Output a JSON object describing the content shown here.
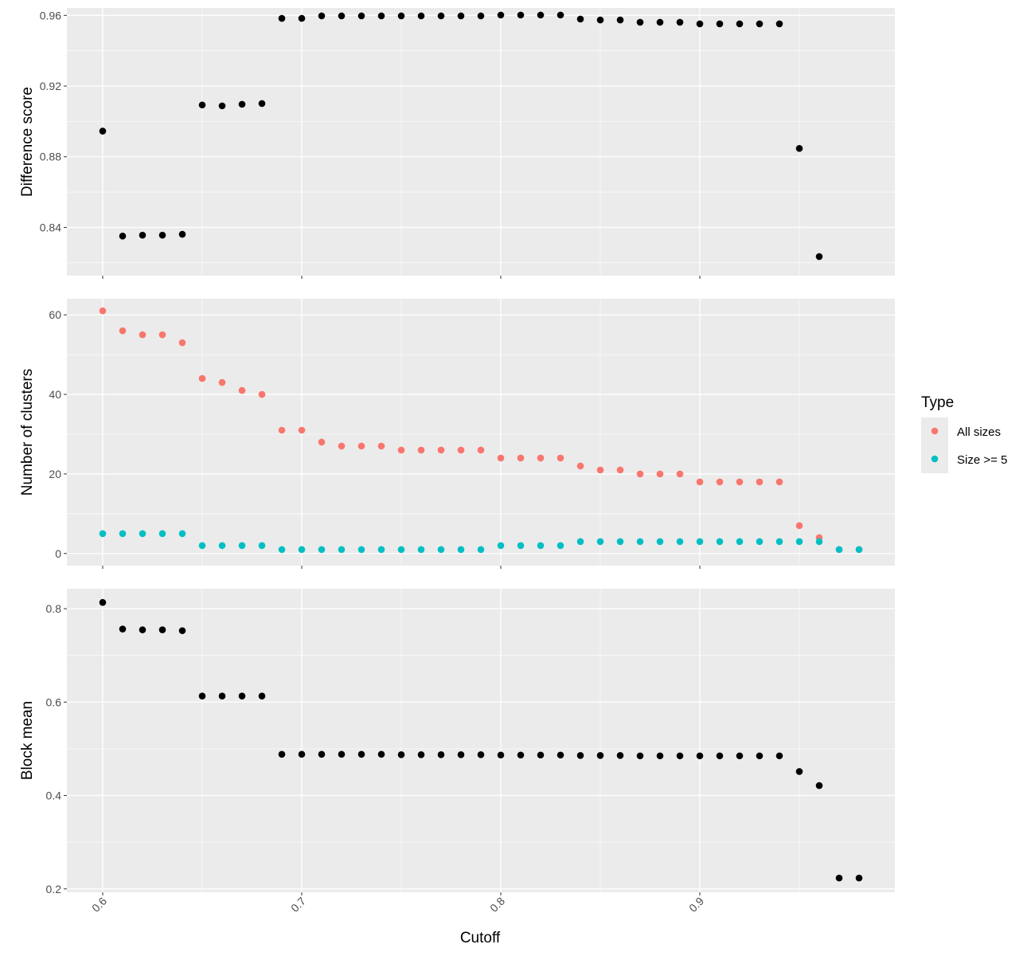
{
  "chart_data": {
    "type": "scatter",
    "xlabel": "Cutoff",
    "x_ticks": [
      "0.6",
      "0.7",
      "0.8",
      "0.9"
    ],
    "x_tick_values": [
      0.6,
      0.7,
      0.8,
      0.9
    ],
    "xlim": [
      0.582,
      0.998
    ],
    "grid": true,
    "legend": {
      "title": "Type",
      "placement": "right",
      "entries": [
        {
          "label": "All sizes",
          "color": "#F8766D"
        },
        {
          "label": "Size >= 5",
          "color": "#00BFC4"
        }
      ]
    },
    "panels": [
      {
        "ylabel": "Difference score",
        "ylim": [
          0.8127,
          0.9642
        ],
        "y_ticks": [
          "0.84",
          "0.88",
          "0.92",
          "0.96"
        ],
        "y_tick_values": [
          0.84,
          0.88,
          0.92,
          0.96
        ],
        "series": [
          {
            "color": "#000000",
            "points": [
              [
                0.6,
                0.8945
              ],
              [
                0.61,
                0.8351
              ],
              [
                0.62,
                0.8356
              ],
              [
                0.63,
                0.8356
              ],
              [
                0.64,
                0.8361
              ],
              [
                0.65,
                0.9093
              ],
              [
                0.66,
                0.9088
              ],
              [
                0.67,
                0.9097
              ],
              [
                0.68,
                0.9101
              ],
              [
                0.69,
                0.9583
              ],
              [
                0.7,
                0.9583
              ],
              [
                0.71,
                0.9597
              ],
              [
                0.72,
                0.9597
              ],
              [
                0.73,
                0.9597
              ],
              [
                0.74,
                0.9597
              ],
              [
                0.75,
                0.9597
              ],
              [
                0.76,
                0.9597
              ],
              [
                0.77,
                0.9597
              ],
              [
                0.78,
                0.9597
              ],
              [
                0.79,
                0.9597
              ],
              [
                0.8,
                0.9602
              ],
              [
                0.81,
                0.9602
              ],
              [
                0.82,
                0.9602
              ],
              [
                0.83,
                0.9602
              ],
              [
                0.84,
                0.9579
              ],
              [
                0.85,
                0.9574
              ],
              [
                0.86,
                0.9574
              ],
              [
                0.87,
                0.9561
              ],
              [
                0.88,
                0.9561
              ],
              [
                0.89,
                0.9561
              ],
              [
                0.9,
                0.9552
              ],
              [
                0.91,
                0.9552
              ],
              [
                0.92,
                0.9552
              ],
              [
                0.93,
                0.9552
              ],
              [
                0.94,
                0.9552
              ],
              [
                0.95,
                0.8847
              ],
              [
                0.96,
                0.8235
              ]
            ]
          }
        ]
      },
      {
        "ylabel": "Number of clusters",
        "ylim": [
          -3.05,
          64.05
        ],
        "y_ticks": [
          "0",
          "20",
          "40",
          "60"
        ],
        "y_tick_values": [
          0,
          20,
          40,
          60
        ],
        "series": [
          {
            "name": "All sizes",
            "color": "#F8766D",
            "points": [
              [
                0.6,
                61
              ],
              [
                0.61,
                56
              ],
              [
                0.62,
                55
              ],
              [
                0.63,
                55
              ],
              [
                0.64,
                53
              ],
              [
                0.65,
                44
              ],
              [
                0.66,
                43
              ],
              [
                0.67,
                41
              ],
              [
                0.68,
                40
              ],
              [
                0.69,
                31
              ],
              [
                0.7,
                31
              ],
              [
                0.71,
                28
              ],
              [
                0.72,
                27
              ],
              [
                0.73,
                27
              ],
              [
                0.74,
                27
              ],
              [
                0.75,
                26
              ],
              [
                0.76,
                26
              ],
              [
                0.77,
                26
              ],
              [
                0.78,
                26
              ],
              [
                0.79,
                26
              ],
              [
                0.8,
                24
              ],
              [
                0.81,
                24
              ],
              [
                0.82,
                24
              ],
              [
                0.83,
                24
              ],
              [
                0.84,
                22
              ],
              [
                0.85,
                21
              ],
              [
                0.86,
                21
              ],
              [
                0.87,
                20
              ],
              [
                0.88,
                20
              ],
              [
                0.89,
                20
              ],
              [
                0.9,
                18
              ],
              [
                0.91,
                18
              ],
              [
                0.92,
                18
              ],
              [
                0.93,
                18
              ],
              [
                0.94,
                18
              ],
              [
                0.95,
                7
              ],
              [
                0.96,
                4
              ],
              [
                0.97,
                1
              ],
              [
                0.98,
                1
              ]
            ]
          },
          {
            "name": "Size >= 5",
            "color": "#00BFC4",
            "points": [
              [
                0.6,
                5
              ],
              [
                0.61,
                5
              ],
              [
                0.62,
                5
              ],
              [
                0.63,
                5
              ],
              [
                0.64,
                5
              ],
              [
                0.65,
                2
              ],
              [
                0.66,
                2
              ],
              [
                0.67,
                2
              ],
              [
                0.68,
                2
              ],
              [
                0.69,
                1
              ],
              [
                0.7,
                1
              ],
              [
                0.71,
                1
              ],
              [
                0.72,
                1
              ],
              [
                0.73,
                1
              ],
              [
                0.74,
                1
              ],
              [
                0.75,
                1
              ],
              [
                0.76,
                1
              ],
              [
                0.77,
                1
              ],
              [
                0.78,
                1
              ],
              [
                0.79,
                1
              ],
              [
                0.8,
                2
              ],
              [
                0.81,
                2
              ],
              [
                0.82,
                2
              ],
              [
                0.83,
                2
              ],
              [
                0.84,
                3
              ],
              [
                0.85,
                3
              ],
              [
                0.86,
                3
              ],
              [
                0.87,
                3
              ],
              [
                0.88,
                3
              ],
              [
                0.89,
                3
              ],
              [
                0.9,
                3
              ],
              [
                0.91,
                3
              ],
              [
                0.92,
                3
              ],
              [
                0.93,
                3
              ],
              [
                0.94,
                3
              ],
              [
                0.95,
                3
              ],
              [
                0.96,
                3
              ],
              [
                0.97,
                1
              ],
              [
                0.98,
                1
              ]
            ]
          }
        ]
      },
      {
        "ylabel": "Block mean",
        "ylim": [
          0.1928,
          0.8427
        ],
        "y_ticks": [
          "0.2",
          "0.4",
          "0.6",
          "0.8"
        ],
        "y_tick_values": [
          0.2,
          0.4,
          0.6,
          0.8
        ],
        "series": [
          {
            "color": "#000000",
            "points": [
              [
                0.6,
                0.8133
              ],
              [
                0.61,
                0.7564
              ],
              [
                0.62,
                0.7547
              ],
              [
                0.63,
                0.7547
              ],
              [
                0.64,
                0.7529
              ],
              [
                0.65,
                0.6129
              ],
              [
                0.66,
                0.6129
              ],
              [
                0.67,
                0.6129
              ],
              [
                0.68,
                0.6129
              ],
              [
                0.69,
                0.4882
              ],
              [
                0.7,
                0.4882
              ],
              [
                0.71,
                0.4882
              ],
              [
                0.72,
                0.4882
              ],
              [
                0.73,
                0.4882
              ],
              [
                0.74,
                0.4882
              ],
              [
                0.75,
                0.4874
              ],
              [
                0.76,
                0.4874
              ],
              [
                0.77,
                0.4874
              ],
              [
                0.78,
                0.4874
              ],
              [
                0.79,
                0.4874
              ],
              [
                0.8,
                0.4866
              ],
              [
                0.81,
                0.4866
              ],
              [
                0.82,
                0.4866
              ],
              [
                0.83,
                0.4866
              ],
              [
                0.84,
                0.4857
              ],
              [
                0.85,
                0.4857
              ],
              [
                0.86,
                0.4857
              ],
              [
                0.87,
                0.4849
              ],
              [
                0.88,
                0.4849
              ],
              [
                0.89,
                0.4849
              ],
              [
                0.9,
                0.4849
              ],
              [
                0.91,
                0.4849
              ],
              [
                0.92,
                0.4849
              ],
              [
                0.93,
                0.4849
              ],
              [
                0.94,
                0.4849
              ],
              [
                0.95,
                0.4514
              ],
              [
                0.96,
                0.4212
              ],
              [
                0.97,
                0.2233
              ],
              [
                0.98,
                0.2233
              ]
            ]
          }
        ]
      }
    ]
  }
}
